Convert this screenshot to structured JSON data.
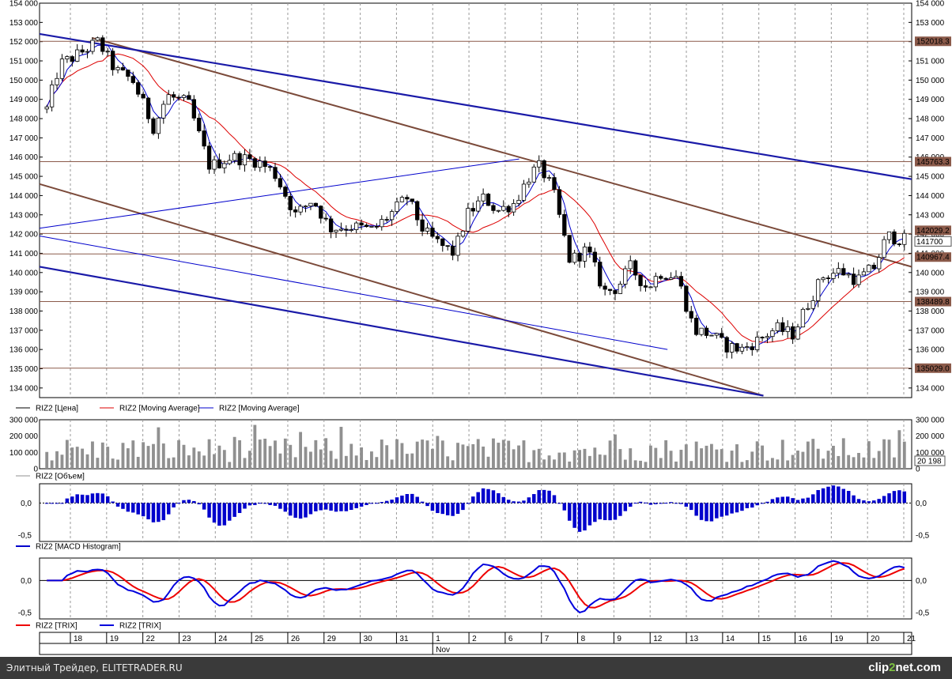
{
  "footer": {
    "site": "Элитный Трейдер, ELITETRADER.RU",
    "logo_prefix": "clip",
    "logo_digit": "2",
    "logo_suffix": "net.com"
  },
  "colors": {
    "price": "#000000",
    "ma_fast": "#0000cc",
    "ma_slow": "#dd0000",
    "channel_blue": "#1a1aa8",
    "channel_brown": "#7b4a3a",
    "level_line": "#8b5a4a",
    "trix_signal": "#ee0000",
    "trix": "#0000dd",
    "volume": "#909090",
    "macd": "#0000cc"
  },
  "chart_data": [
    {
      "type": "candlestick",
      "panel": "price",
      "ylim": [
        133500,
        154000
      ],
      "y_ticks": [
        "154 000",
        "153 000",
        "152 000",
        "151 000",
        "150 000",
        "149 000",
        "148 000",
        "147 000",
        "146 000",
        "145 000",
        "144 000",
        "143 000",
        "142 000",
        "141 000",
        "140 000",
        "139 000",
        "138 000",
        "137 000",
        "136 000",
        "135 000",
        "134 000"
      ],
      "right_labels": [
        "152018.3",
        "145763.3",
        "142029.2",
        "141700",
        "140967.4",
        "138489.8",
        "135029.0"
      ],
      "levels": [
        152018.3,
        145763.3,
        142029.2,
        140967.4,
        138489.8,
        135029.0
      ],
      "last_price": 141700,
      "legend": [
        "RIZ2 [Цена]",
        "RIZ2 [Moving Average]",
        "RIZ2 [Moving Average]"
      ],
      "trendlines_blue": [
        {
          "from": [
            0,
            152400
          ],
          "to": [
            1.0,
            144850
          ]
        },
        {
          "from": [
            0,
            140300
          ],
          "to": [
            0.83,
            133600
          ]
        }
      ],
      "trendlines_brown": [
        {
          "from": [
            0.06,
            152200
          ],
          "to": [
            1.0,
            140300
          ]
        },
        {
          "from": [
            0,
            144600
          ],
          "to": [
            0.83,
            133600
          ]
        }
      ],
      "trendlines_thin_blue": [
        {
          "from": [
            0,
            142300
          ],
          "to": [
            0.55,
            145900
          ]
        },
        {
          "from": [
            0,
            141900
          ],
          "to": [
            0.72,
            136000
          ]
        }
      ],
      "anchors": [
        [
          0.0,
          148500
        ],
        [
          0.015,
          150800
        ],
        [
          0.035,
          151300
        ],
        [
          0.06,
          152000
        ],
        [
          0.08,
          150500
        ],
        [
          0.1,
          150000
        ],
        [
          0.125,
          147500
        ],
        [
          0.14,
          149200
        ],
        [
          0.165,
          148800
        ],
        [
          0.19,
          145500
        ],
        [
          0.215,
          146000
        ],
        [
          0.245,
          145800
        ],
        [
          0.265,
          145200
        ],
        [
          0.29,
          143000
        ],
        [
          0.31,
          143800
        ],
        [
          0.33,
          142300
        ],
        [
          0.355,
          142400
        ],
        [
          0.38,
          142200
        ],
        [
          0.4,
          143000
        ],
        [
          0.42,
          143900
        ],
        [
          0.44,
          142100
        ],
        [
          0.46,
          141400
        ],
        [
          0.475,
          141000
        ],
        [
          0.49,
          143000
        ],
        [
          0.51,
          143900
        ],
        [
          0.525,
          143200
        ],
        [
          0.545,
          143600
        ],
        [
          0.565,
          145200
        ],
        [
          0.575,
          145500
        ],
        [
          0.59,
          144300
        ],
        [
          0.61,
          140600
        ],
        [
          0.63,
          141200
        ],
        [
          0.65,
          139000
        ],
        [
          0.665,
          139200
        ],
        [
          0.68,
          140300
        ],
        [
          0.7,
          139200
        ],
        [
          0.715,
          140000
        ],
        [
          0.735,
          139800
        ],
        [
          0.755,
          137000
        ],
        [
          0.775,
          136800
        ],
        [
          0.79,
          136200
        ],
        [
          0.81,
          136000
        ],
        [
          0.83,
          136500
        ],
        [
          0.85,
          137100
        ],
        [
          0.87,
          136800
        ],
        [
          0.89,
          138600
        ],
        [
          0.905,
          139800
        ],
        [
          0.925,
          140100
        ],
        [
          0.945,
          139600
        ],
        [
          0.965,
          140300
        ],
        [
          0.98,
          141900
        ],
        [
          1.0,
          141700
        ]
      ],
      "candle_count": 170
    },
    {
      "type": "bar",
      "panel": "volume",
      "ylim": [
        0,
        300000
      ],
      "y_ticks": [
        "300 000",
        "200 000",
        "100 000",
        "0"
      ],
      "last_value": "20 198",
      "legend": [
        "RIZ2 [Объем]"
      ]
    },
    {
      "type": "bar",
      "panel": "macd",
      "ylim": [
        -0.6,
        0.3
      ],
      "y_ticks": [
        "0,0",
        "-0,5"
      ],
      "legend": [
        "RIZ2 [MACD Histogram]"
      ]
    },
    {
      "type": "line",
      "panel": "trix",
      "ylim": [
        -0.6,
        0.35
      ],
      "y_ticks": [
        "0,0",
        "-0,5"
      ],
      "series": [
        {
          "name": "RIZ2 [TRIX]"
        },
        {
          "name": "RIZ2 [TRIX]"
        }
      ]
    },
    {
      "type": "axis",
      "panel": "dates",
      "days": [
        "18",
        "19",
        "22",
        "23",
        "24",
        "25",
        "26",
        "29",
        "30",
        "31",
        "1",
        "2",
        "6",
        "7",
        "8",
        "9",
        "12",
        "13",
        "14",
        "15",
        "16",
        "19",
        "20",
        "21"
      ],
      "month_label": "Nov",
      "month_at_day": "1"
    }
  ]
}
